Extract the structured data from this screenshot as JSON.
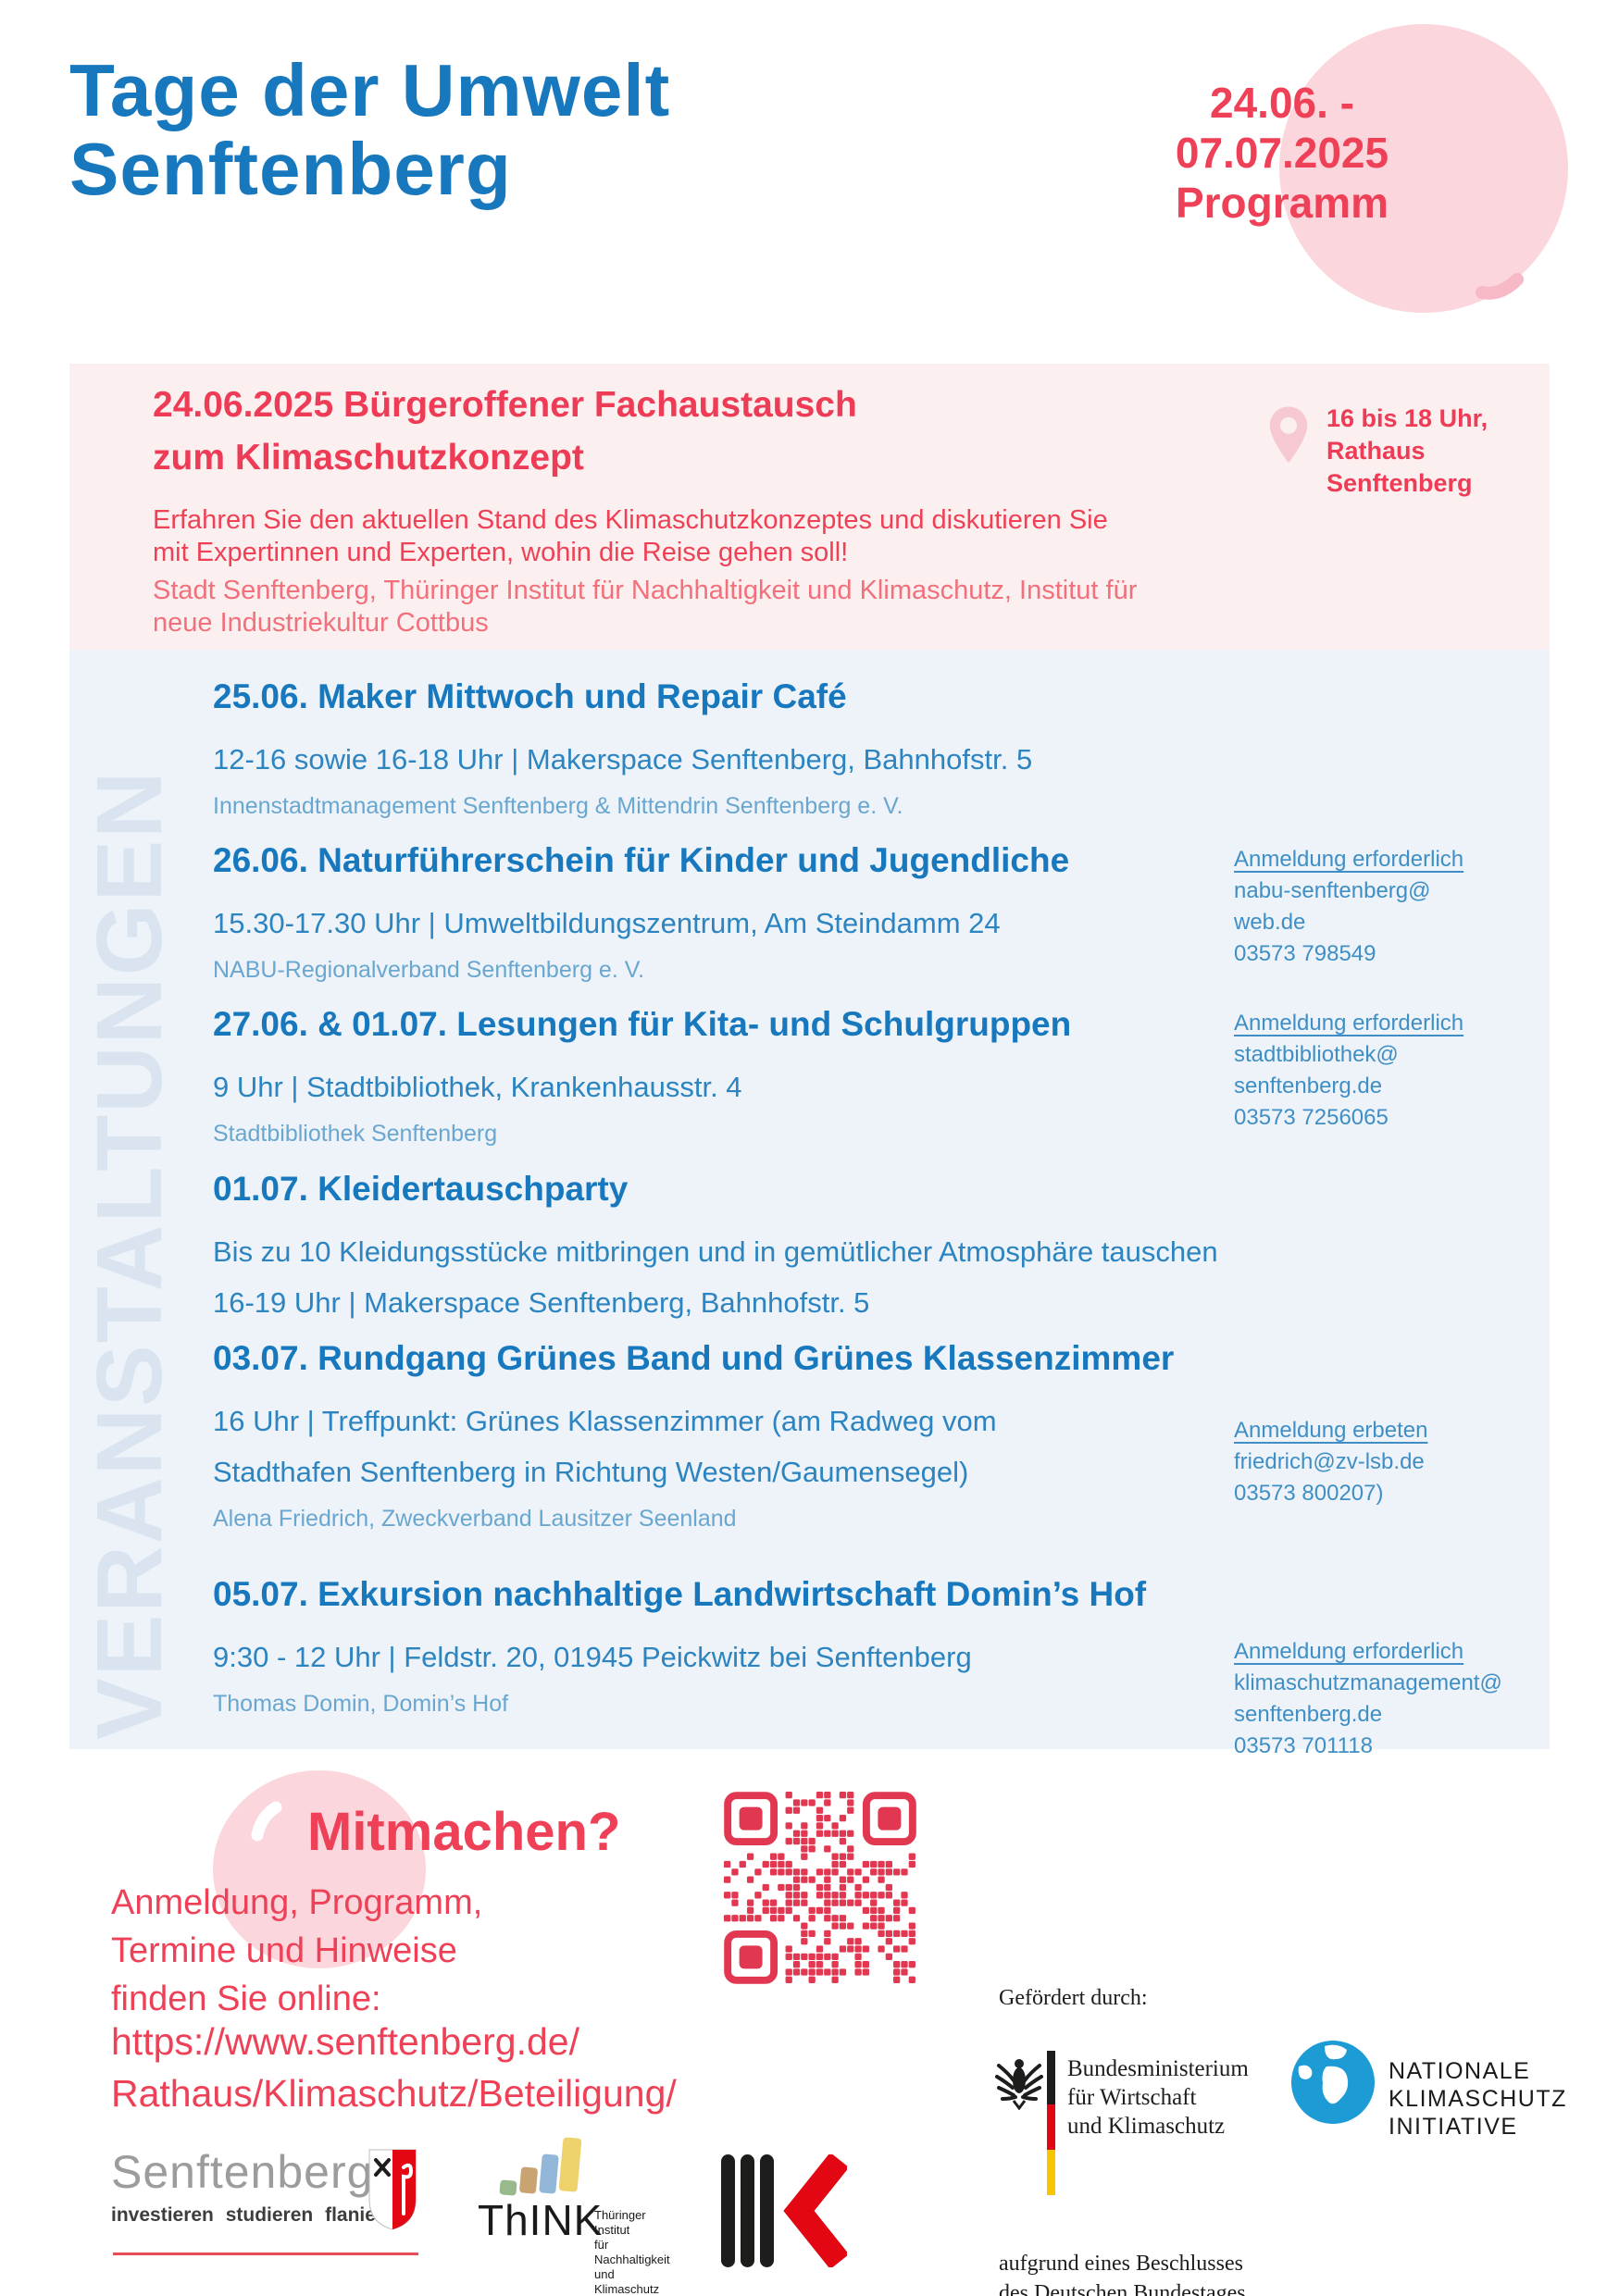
{
  "palette": {
    "brand_blue": "#1878be",
    "brand_red": "#ee4157",
    "pink_circle": "#fbd7dd",
    "pink_section_bg": "#fbf0ef",
    "blue_section_bg": "#edf3f8",
    "watermark_blue": "#d9e4f0",
    "qr_red": "#e23750",
    "germany_flag": [
      "#1d1d1b",
      "#e30613",
      "#f7c600"
    ],
    "nki_globe_blue": "#1d9bd5"
  },
  "icons": {
    "location_pin": "map-pin-shape",
    "qr": "qr-code-pattern",
    "federal_eagle": "stylized-eagle",
    "globe": "earth-globe",
    "coat_of_arms": "senftenberg-shield",
    "circle_accent": "curved-comma-stroke",
    "balloon_highlight": "white-arc-stroke"
  },
  "header": {
    "title_lines": [
      "Tage der Umwelt",
      "Senftenberg"
    ],
    "badge_lines": [
      "24.06. -",
      "07.07.2025",
      "Programm"
    ]
  },
  "featured": {
    "title_lines": [
      "24.06.2025 Bürgeroffener Fachaustausch",
      "zum Klimaschutzkonzept"
    ],
    "location_lines": [
      "16 bis 18 Uhr,",
      "Rathaus",
      "Senftenberg"
    ],
    "description_lines": [
      "Erfahren Sie den aktuellen Stand des Klimaschutzkonzeptes und diskutieren Sie",
      "mit Expertinnen und Experten, wohin die Reise gehen soll!"
    ],
    "organizer_lines": [
      "Stadt Senftenberg, Thüringer Institut für Nachhaltigkeit und Klimaschutz, Institut für",
      "neue Industriekultur Cottbus"
    ]
  },
  "events": {
    "watermark": "VERANSTALTUNGEN",
    "items": [
      {
        "title": "25.06. Maker Mittwoch und Repair Café",
        "details": [
          "12-16 sowie 16-18 Uhr | Makerspace Senftenberg, Bahnhofstr. 5"
        ],
        "organizer": "Innenstadtmanagement Senftenberg & Mittendrin Senftenberg e. V."
      },
      {
        "title": "26.06. Naturführerschein für Kinder und Jugendliche",
        "details": [
          "15.30-17.30 Uhr | Umweltbildungszentrum, Am Steindamm 24"
        ],
        "organizer": "NABU-Regionalverband Senftenberg e. V.",
        "registration": {
          "label": "Anmeldung erforderlich",
          "contact_lines": [
            "nabu-senftenberg@",
            "web.de"
          ],
          "phone": "03573 798549"
        }
      },
      {
        "title": "27.06. & 01.07. Lesungen für Kita- und Schulgruppen",
        "details": [
          "9 Uhr | Stadtbibliothek, Krankenhausstr. 4"
        ],
        "organizer": "Stadtbibliothek Senftenberg",
        "registration": {
          "label": "Anmeldung erforderlich",
          "contact_lines": [
            "stadtbibliothek@",
            "senftenberg.de"
          ],
          "phone": "03573 7256065"
        }
      },
      {
        "title": "01.07. Kleidertauschparty",
        "details": [
          "Bis zu 10 Kleidungsstücke mitbringen und in gemütlicher Atmosphäre tauschen",
          "16-19 Uhr | Makerspace Senftenberg, Bahnhofstr. 5"
        ]
      },
      {
        "title": "03.07. Rundgang Grünes Band und Grünes Klassenzimmer",
        "details": [
          "16 Uhr | Treffpunkt: Grünes Klassenzimmer (am Radweg vom",
          "Stadthafen Senftenberg in Richtung Westen/Gaumensegel)"
        ],
        "organizer": "Alena Friedrich, Zweckverband Lausitzer Seenland",
        "registration": {
          "label": "Anmeldung erbeten",
          "contact_lines": [
            "friedrich@zv-lsb.de"
          ],
          "phone": "03573 800207)"
        }
      },
      {
        "title": "05.07. Exkursion nachhaltige Landwirtschaft Domin’s Hof",
        "details": [
          "9:30 - 12 Uhr | Feldstr. 20, 01945 Peickwitz bei Senftenberg"
        ],
        "organizer": "Thomas Domin, Domin’s Hof",
        "registration": {
          "label": "Anmeldung erforderlich",
          "contact_lines": [
            "klimaschutzmanagement@",
            "senftenberg.de"
          ],
          "phone": "03573 701118"
        }
      }
    ]
  },
  "participate": {
    "heading": "Mitmachen?",
    "text_lines": [
      "Anmeldung, Programm,",
      "Termine und Hinweise",
      "finden Sie online:"
    ],
    "url_lines": [
      "https://www.senftenberg.de/",
      "Rathaus/Klimaschutz/Beteiligung/"
    ]
  },
  "footer": {
    "senftenberg": {
      "name": "Senftenberg",
      "tagline": "investieren  studieren  flanieren"
    },
    "think": {
      "wordmark": "ThINK",
      "sub_lines": [
        "Thüringer Institut",
        "für Nachhaltigkeit",
        "und Klimaschutz"
      ]
    },
    "funded_by_label": "Gefördert durch:",
    "bmwk_lines": [
      "Bundesministerium",
      "für Wirtschaft",
      "und Klimaschutz"
    ],
    "nki_lines": [
      "NATIONALE",
      "KLIMASCHUTZ",
      "INITIATIVE"
    ],
    "bundestag_lines": [
      "aufgrund eines Beschlusses",
      "des Deutschen Bundestages"
    ]
  }
}
